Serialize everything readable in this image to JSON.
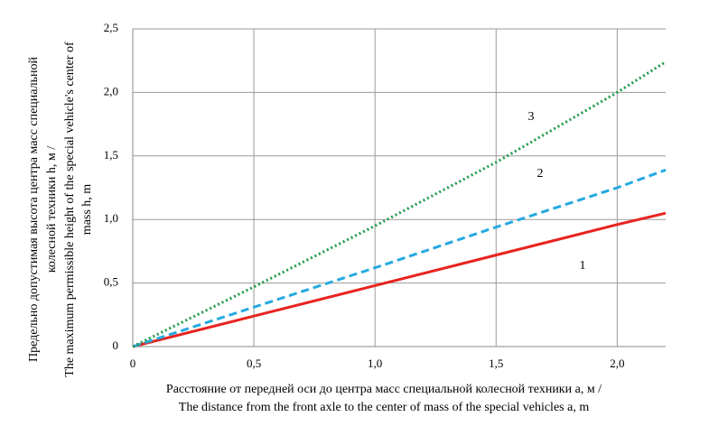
{
  "chart_data": {
    "type": "line",
    "x_label": [
      "Расстояние от передней оси до центра масс специальной колесной техники a, м /",
      "The distance from the front axle to the center of mass of the special vehicles a, m"
    ],
    "y_label": [
      "Предельно допустимая высота центра масс специальной",
      "колесной техники h, м /",
      "The maximum permissible height of the special vehicle's center of",
      "mass h, m"
    ],
    "x": [
      0,
      0.5,
      1.0,
      1.5,
      2.0,
      2.2
    ],
    "series": [
      {
        "name": "1",
        "color": "#e8231f",
        "style": "solid",
        "values": [
          0,
          0.24,
          0.48,
          0.72,
          0.96,
          1.05
        ]
      },
      {
        "name": "2",
        "color": "#25a9e0",
        "style": "dashed",
        "values": [
          0,
          0.31,
          0.62,
          0.94,
          1.25,
          1.39
        ]
      },
      {
        "name": "3",
        "color": "#1e9a4a",
        "style": "dotted",
        "values": [
          0,
          0.47,
          0.95,
          1.45,
          2.0,
          2.24
        ]
      }
    ],
    "xlim": [
      0,
      2.2
    ],
    "ylim": [
      0,
      2.5
    ],
    "xticks": [
      0,
      {
        "value": 0.5,
        "label": "0,5"
      },
      {
        "value": 1.0,
        "label": "1,0"
      },
      {
        "value": 1.5,
        "label": "1,5"
      },
      {
        "value": 2.0,
        "label": "2,0"
      }
    ],
    "yticks": [
      0,
      {
        "value": 0.5,
        "label": "0,5"
      },
      {
        "value": 1.0,
        "label": "1,0"
      },
      {
        "value": 1.5,
        "label": "1,5"
      },
      {
        "value": 2.0,
        "label": "2,0"
      },
      {
        "value": 2.5,
        "label": "2,5"
      }
    ],
    "grid": true
  }
}
